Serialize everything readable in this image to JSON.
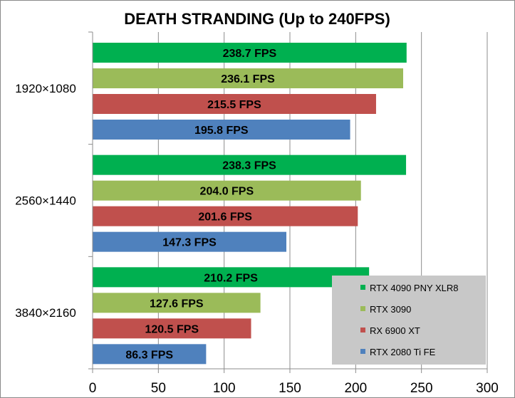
{
  "chart_data": {
    "type": "bar",
    "orientation": "horizontal",
    "title": "DEATH STRANDING (Up to 240FPS)",
    "categories": [
      "1920×1080",
      "2560×1440",
      "3840×2160"
    ],
    "series": [
      {
        "name": "RTX 4090 PNY XLR8",
        "color": "#00b050",
        "values": [
          238.7,
          238.3,
          210.2
        ],
        "labels": [
          "238.7 FPS",
          "238.3 FPS",
          "210.2 FPS"
        ]
      },
      {
        "name": "RTX 3090",
        "color": "#9bbb59",
        "values": [
          236.1,
          204.0,
          127.6
        ],
        "labels": [
          "236.1 FPS",
          "204.0 FPS",
          "127.6 FPS"
        ]
      },
      {
        "name": "RX 6900 XT",
        "color": "#c0504d",
        "values": [
          215.5,
          201.6,
          120.5
        ],
        "labels": [
          "215.5 FPS",
          "201.6 FPS",
          "120.5 FPS"
        ]
      },
      {
        "name": "RTX 2080 Ti FE",
        "color": "#4f81bd",
        "values": [
          195.8,
          147.3,
          86.3
        ],
        "labels": [
          "195.8 FPS",
          "147.3 FPS",
          "86.3 FPS"
        ]
      }
    ],
    "xlim": [
      0,
      300
    ],
    "xticks": [
      "0",
      "50",
      "100",
      "150",
      "200",
      "250",
      "300"
    ],
    "grid": true,
    "legend_position": "bottom-right",
    "legend_background": "#c8c8c8",
    "gridline_color": "#8c8c8c"
  }
}
